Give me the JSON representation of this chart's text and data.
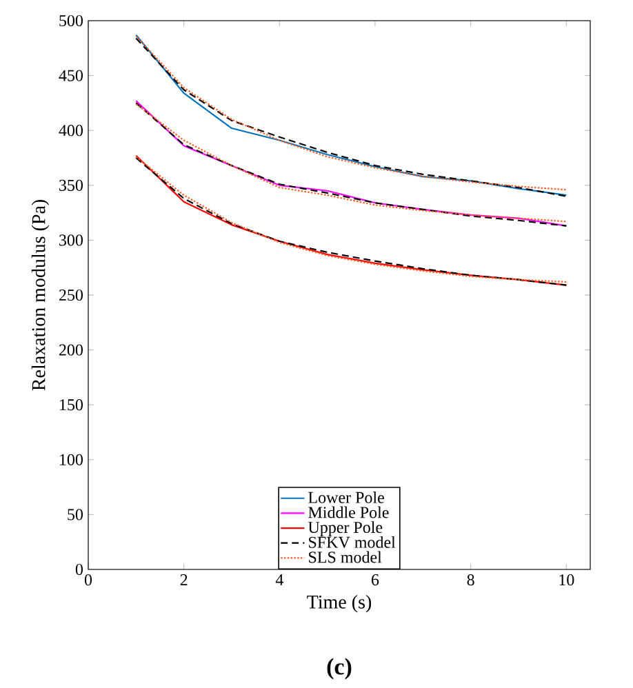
{
  "chart_data": {
    "type": "line",
    "xlabel": "Time (s)",
    "ylabel": "Relaxation modulus (Pa)",
    "annotations": [
      "(c)"
    ],
    "x": [
      1,
      2,
      3,
      4,
      5,
      6,
      7,
      8,
      9,
      10
    ],
    "xlim": [
      0,
      10.5
    ],
    "xticks": [
      0,
      2,
      4,
      6,
      8,
      10
    ],
    "ylim": [
      0,
      500
    ],
    "yticks": [
      0,
      50,
      100,
      150,
      200,
      250,
      300,
      350,
      400,
      450,
      500
    ],
    "grid": false,
    "legend": "bottom",
    "marker": "none",
    "series": [
      {
        "name": "Lower Pole",
        "color": "#0072bd",
        "line_style": "solid",
        "values": [
          487,
          434,
          402,
          391,
          378,
          367,
          358,
          354,
          347,
          341
        ]
      },
      {
        "name": "Middle Pole",
        "color": "#ff00ff",
        "line_style": "solid",
        "values": [
          427,
          386,
          368,
          350,
          345,
          334,
          328,
          323,
          320,
          313
        ]
      },
      {
        "name": "Upper Pole",
        "color": "#ff0000",
        "line_style": "solid",
        "values": [
          377,
          335,
          314,
          299,
          287,
          279,
          273,
          268,
          264,
          259
        ]
      },
      {
        "name": "SFKV model",
        "color": "#000000",
        "line_style": "dashed",
        "values": [
          484,
          437,
          409,
          394,
          380,
          368,
          360,
          354,
          348,
          340
        ]
      },
      {
        "color": "#000000",
        "line_style": "dashed",
        "values": [
          425,
          387,
          368,
          351,
          343,
          334,
          328,
          322,
          318,
          313
        ]
      },
      {
        "color": "#000000",
        "line_style": "dashed",
        "values": [
          375,
          338,
          315,
          299,
          289,
          281,
          274,
          268,
          264,
          259
        ]
      },
      {
        "name": "SLS model",
        "color": "#ff5a1f",
        "line_style": "dotted",
        "values": [
          486,
          439,
          410,
          391,
          376,
          366,
          358,
          353,
          349,
          346
        ]
      },
      {
        "color": "#ff5a1f",
        "line_style": "dotted",
        "values": [
          424,
          391,
          368,
          348,
          341,
          332,
          327,
          323,
          320,
          317
        ]
      },
      {
        "color": "#ff5a1f",
        "line_style": "dotted",
        "values": [
          376,
          341,
          316,
          298,
          286,
          278,
          272,
          267,
          264,
          262
        ]
      }
    ]
  }
}
